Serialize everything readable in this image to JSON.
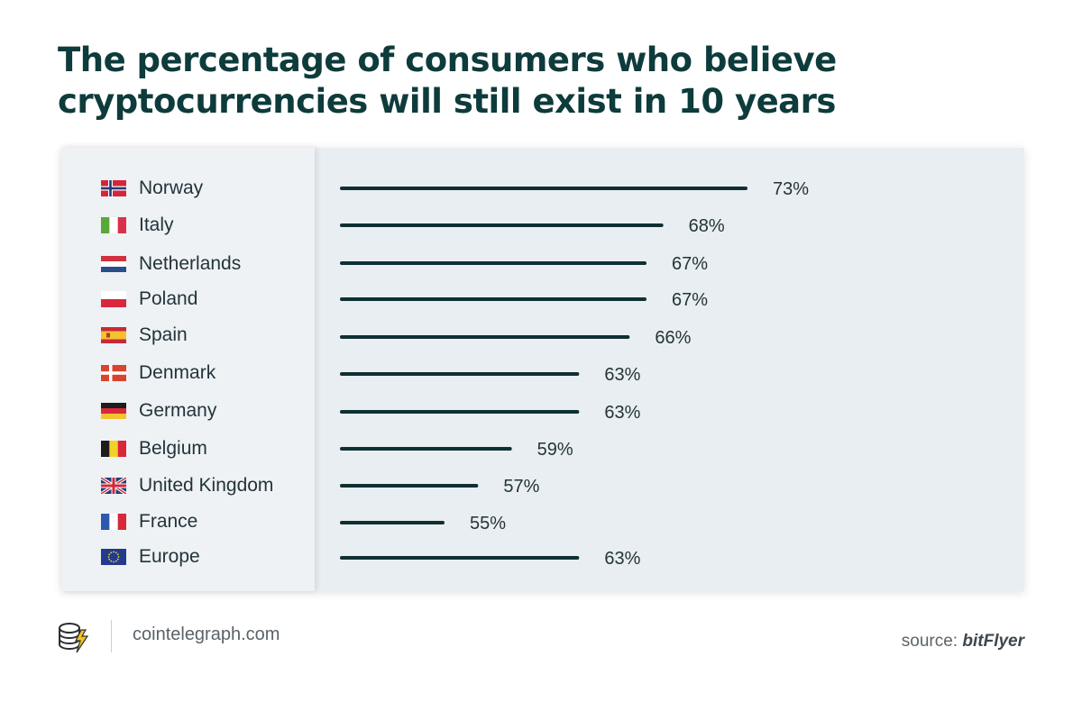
{
  "page": {
    "title": "The percentage of consumers who believe cryptocurrencies will still exist in 10 years",
    "site": "cointelegraph.com",
    "source_prefix": "source:",
    "source_name": "bitFlyer"
  },
  "colors": {
    "title": "#0e3b3b",
    "bar": "#0f2f33",
    "panel": "#e9eef2",
    "label_text": "#23343a"
  },
  "chart_data": {
    "type": "bar",
    "orientation": "horizontal",
    "title": "The percentage of consumers who believe cryptocurrencies will still exist in 10 years",
    "categories": [
      "Norway",
      "Italy",
      "Netherlands",
      "Poland",
      "Spain",
      "Denmark",
      "Germany",
      "Belgium",
      "United Kingdom",
      "France",
      "Europe"
    ],
    "values": [
      73,
      68,
      67,
      67,
      66,
      63,
      63,
      59,
      57,
      55,
      63
    ],
    "value_labels": [
      "73%",
      "68%",
      "67%",
      "67%",
      "66%",
      "63%",
      "63%",
      "59%",
      "57%",
      "55%",
      "63%"
    ],
    "flags": [
      "norway-flag-icon",
      "italy-flag-icon",
      "netherlands-flag-icon",
      "poland-flag-icon",
      "spain-flag-icon",
      "denmark-flag-icon",
      "germany-flag-icon",
      "belgium-flag-icon",
      "united-kingdom-flag-icon",
      "france-flag-icon",
      "europe-flag-icon"
    ],
    "xlabel": "",
    "ylabel": "",
    "grid": false,
    "legend": "none"
  }
}
